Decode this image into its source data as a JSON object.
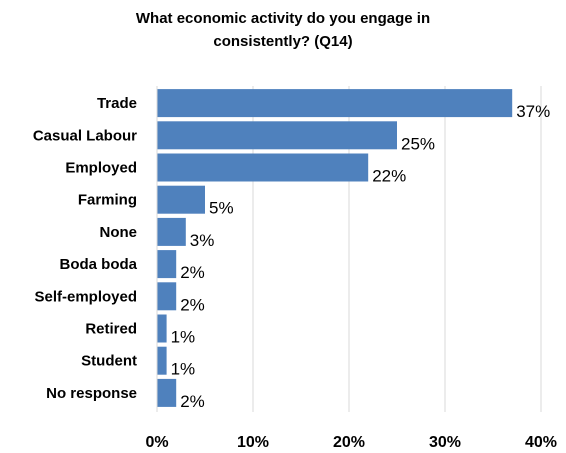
{
  "chart_data": {
    "type": "bar",
    "orientation": "horizontal",
    "title_lines": [
      "What economic activity do you engage in",
      "consistently? (Q14)"
    ],
    "categories": [
      "Trade",
      "Casual Labour",
      "Employed",
      "Farming",
      "None",
      "Boda boda",
      "Self-employed",
      "Retired",
      "Student",
      "No response"
    ],
    "values": [
      37,
      25,
      22,
      5,
      3,
      2,
      2,
      1,
      1,
      2
    ],
    "value_labels": [
      "37%",
      "25%",
      "22%",
      "5%",
      "3%",
      "2%",
      "2%",
      "1%",
      "1%",
      "2%"
    ],
    "xlim": [
      0,
      40
    ],
    "x_ticks": [
      0,
      10,
      20,
      30,
      40
    ],
    "x_tick_labels": [
      "0%",
      "10%",
      "20%",
      "30%",
      "40%"
    ],
    "grid": true,
    "bar_color": "#4f81bd",
    "grid_color": "#d9d9d9"
  }
}
